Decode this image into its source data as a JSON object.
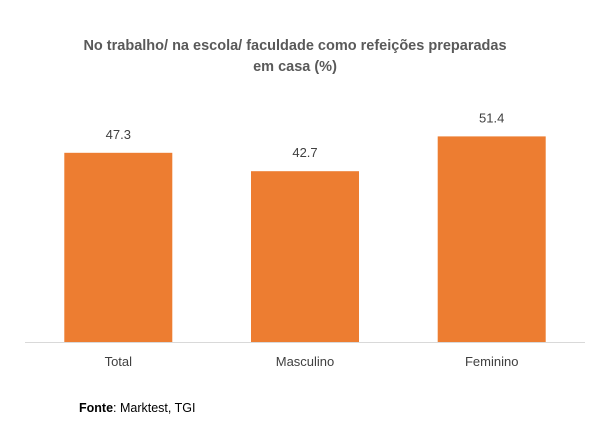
{
  "chart_data": {
    "type": "bar",
    "title_line1": "No trabalho/ na escola/ faculdade como refeições preparadas",
    "title_line2": "em casa (%)",
    "categories": [
      "Total",
      "Masculino",
      "Feminino"
    ],
    "values": [
      47.3,
      42.7,
      51.4
    ],
    "value_labels": [
      "47.3",
      "42.7",
      "51.4"
    ],
    "ylim": [
      0,
      55
    ],
    "grid": false,
    "bar_color": "#ED7D31",
    "axis_color": "#D9D9D9",
    "label_color": "#404040"
  },
  "source": {
    "label": "Fonte",
    "text": ": Marktest, TGI"
  }
}
